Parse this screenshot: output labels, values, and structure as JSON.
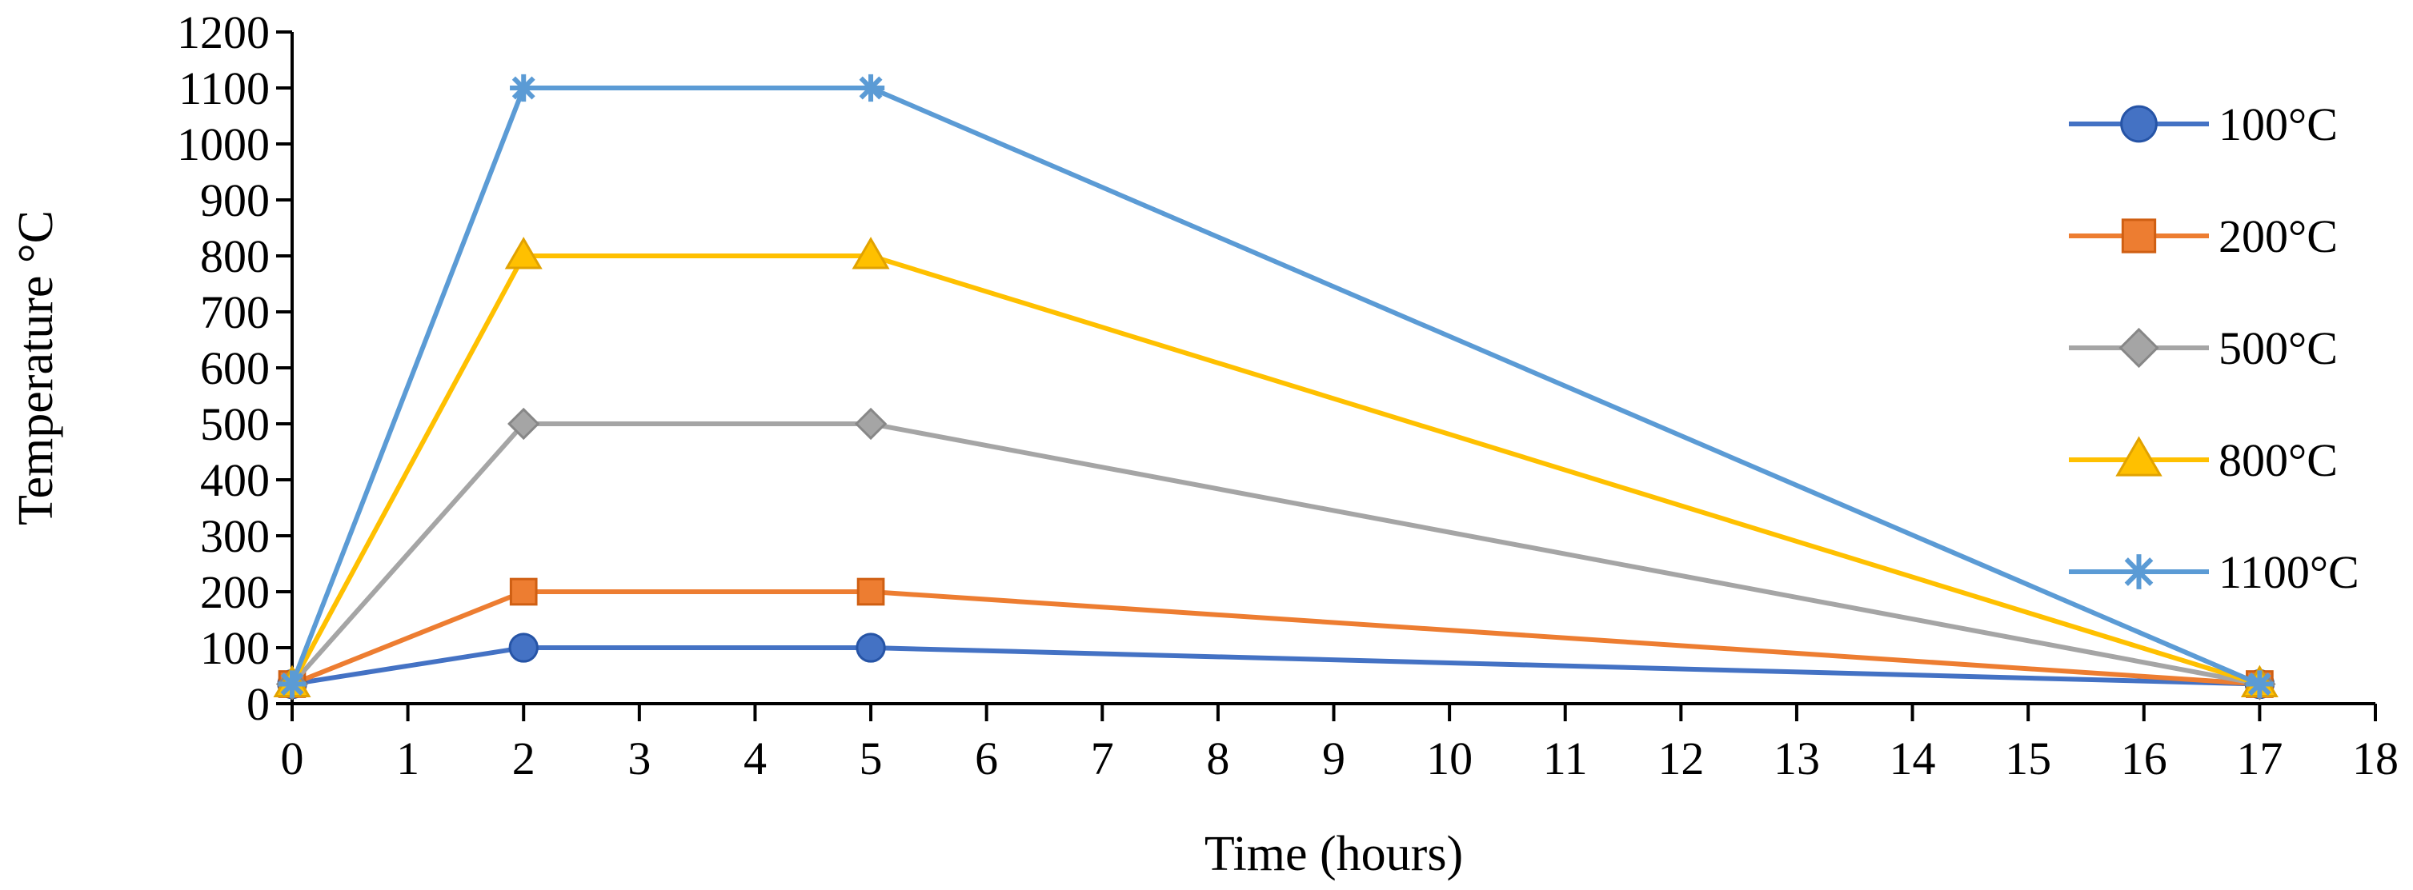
{
  "chart_data": {
    "type": "line",
    "title": "",
    "xlabel": "Time (hours)",
    "ylabel": "Temperature °C",
    "xlim": [
      0,
      18
    ],
    "ylim": [
      0,
      1200
    ],
    "x_ticks": [
      "0",
      "1",
      "2",
      "3",
      "4",
      "5",
      "6",
      "7",
      "8",
      "9",
      "10",
      "11",
      "12",
      "13",
      "14",
      "15",
      "16",
      "17",
      "18"
    ],
    "y_ticks": [
      "0",
      "100",
      "200",
      "300",
      "400",
      "500",
      "600",
      "700",
      "800",
      "900",
      "1000",
      "1100",
      "1200"
    ],
    "legend_position": "right",
    "x": [
      0,
      2,
      5,
      17
    ],
    "series": [
      {
        "name": "100°C",
        "values": [
          35,
          100,
          100,
          35
        ],
        "color": "#4472C4",
        "marker": "circle"
      },
      {
        "name": "200°C",
        "values": [
          35,
          200,
          200,
          35
        ],
        "color": "#ED7D31",
        "marker": "square"
      },
      {
        "name": "500°C",
        "values": [
          35,
          500,
          500,
          35
        ],
        "color": "#A5A5A5",
        "marker": "diamond"
      },
      {
        "name": "800°C",
        "values": [
          35,
          800,
          800,
          35
        ],
        "color": "#FFC000",
        "marker": "triangle"
      },
      {
        "name": "1100°C",
        "values": [
          35,
          1100,
          1100,
          35
        ],
        "color": "#5B9BD5",
        "marker": "star"
      }
    ]
  }
}
